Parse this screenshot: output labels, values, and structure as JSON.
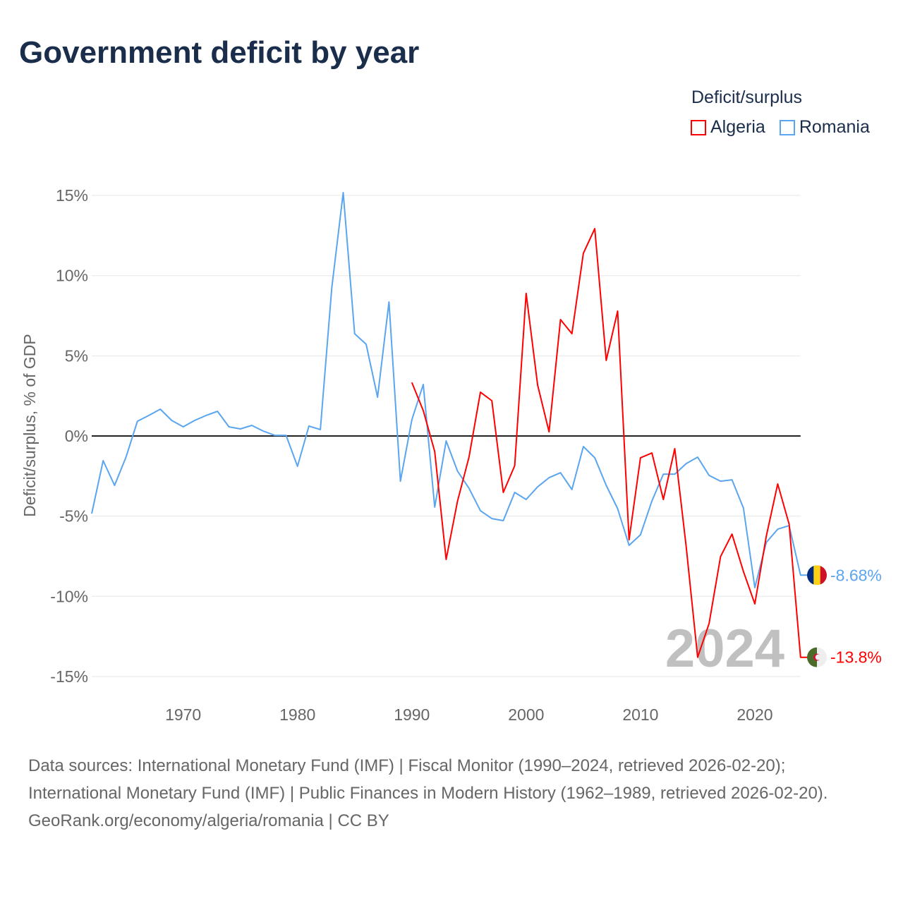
{
  "title": "Government deficit by year",
  "legend": {
    "title": "Deficit/surplus",
    "items": [
      {
        "name": "Algeria",
        "color": "#ff0000"
      },
      {
        "name": "Romania",
        "color": "#5aa5ef"
      }
    ]
  },
  "footer": {
    "sources": "Data sources: International Monetary Fund (IMF) | Fiscal Monitor (1990–2024, retrieved 2026-02-20); International Monetary Fund (IMF) | Public Finances in Modern History (1962–1989, retrieved 2026-02-20).",
    "credit": "GeoRank.org/economy/algeria/romania | CC BY"
  },
  "chart_data": {
    "type": "line",
    "title": "Government deficit by year",
    "ylabel": "Deficit/surplus, % of GDP",
    "xlabel": "",
    "xlim": [
      1962,
      2024
    ],
    "ylim": [
      -16.5,
      16.5
    ],
    "yticks": [
      15,
      10,
      5,
      0,
      -5,
      -10,
      -15
    ],
    "ytick_labels": [
      "15%",
      "10%",
      "5%",
      "0%",
      "-5%",
      "-10%",
      "-15%"
    ],
    "xticks": [
      1970,
      1980,
      1990,
      2000,
      2010,
      2020
    ],
    "xtick_labels": [
      "1970",
      "1980",
      "1990",
      "2000",
      "2010",
      "2020"
    ],
    "year_watermark": "2024",
    "grid": true,
    "legend_position": "top-right",
    "series": [
      {
        "name": "Romania",
        "color": "#5aa5ef",
        "start": 1962,
        "end_label": "-8.68%",
        "values": [
          -4.84,
          -1.54,
          -3.08,
          -1.32,
          0.92,
          1.28,
          1.67,
          0.97,
          0.57,
          0.97,
          1.28,
          1.54,
          0.57,
          0.44,
          0.66,
          0.31,
          0.04,
          0.04,
          -1.89,
          0.62,
          0.4,
          9.24,
          15.18,
          6.38,
          5.72,
          2.42,
          8.36,
          -2.82,
          1.01,
          3.21,
          -4.44,
          -0.31,
          -2.2,
          -3.26,
          -4.66,
          -5.15,
          -5.28,
          -3.52,
          -3.96,
          -3.17,
          -2.6,
          -2.29,
          -3.34,
          -0.66,
          -1.36,
          -3.08,
          -4.53,
          -6.82,
          -6.16,
          -4.05,
          -2.38,
          -2.38,
          -1.72,
          -1.32,
          -2.46,
          -2.82,
          -2.73,
          -4.49,
          -9.46,
          -6.64,
          -5.81,
          -5.59,
          -8.68
        ]
      },
      {
        "name": "Algeria",
        "color": "#ff0000",
        "start": 1990,
        "end_label": "-13.8%",
        "values": [
          3.34,
          1.58,
          -0.97,
          -7.7,
          -4.05,
          -1.32,
          2.73,
          2.2,
          -3.52,
          -1.85,
          8.89,
          3.17,
          0.26,
          7.26,
          6.38,
          11.39,
          12.93,
          4.71,
          7.79,
          -6.47,
          -1.36,
          -1.06,
          -3.96,
          -0.79,
          -6.91,
          -13.8,
          -11.7,
          -7.52,
          -6.12,
          -8.45,
          -10.47,
          -6.25,
          -2.99,
          -5.5,
          -13.8
        ]
      }
    ]
  }
}
